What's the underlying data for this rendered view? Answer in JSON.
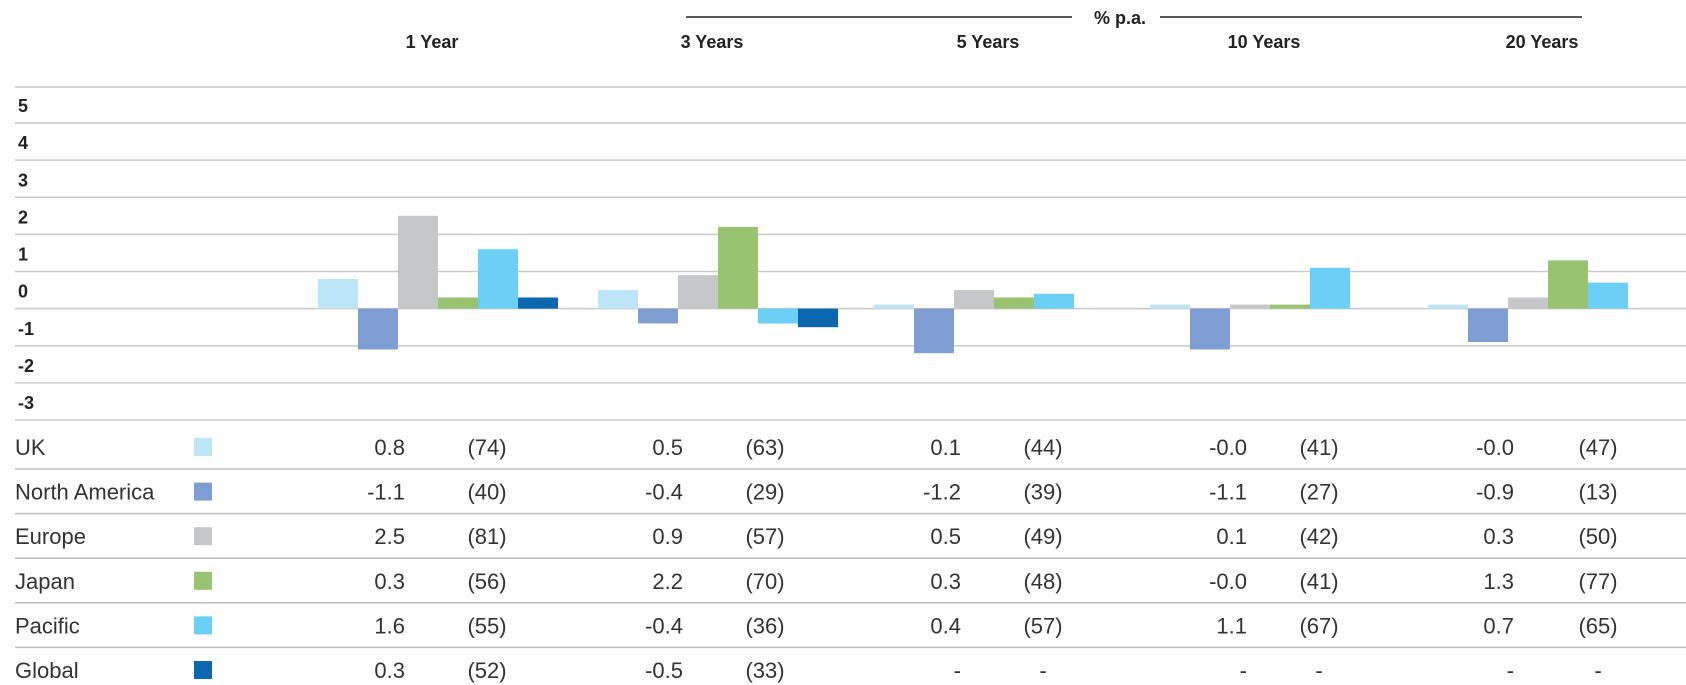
{
  "header": {
    "group_label": "% p.a.",
    "periods": [
      "1 Year",
      "3 Years",
      "5 Years",
      "10 Years",
      "20 Years"
    ]
  },
  "chart_data": {
    "type": "bar",
    "categories": [
      "1 Year",
      "3 Years",
      "5 Years",
      "10 Years",
      "20 Years"
    ],
    "ylim": [
      -3,
      5
    ],
    "yticks": [
      "5",
      "4",
      "3",
      "2",
      "1",
      "0",
      "-1",
      "-2",
      "-3"
    ],
    "grid": true,
    "legend": "table-below",
    "series": [
      {
        "name": "UK",
        "color": "#bce6f8",
        "values": [
          0.8,
          0.5,
          0.1,
          -0.0,
          -0.0
        ],
        "value_labels": [
          "0.8",
          "0.5",
          "0.1",
          "-0.0",
          "-0.0"
        ],
        "ranks": [
          "(74)",
          "(63)",
          "(44)",
          "(41)",
          "(47)"
        ]
      },
      {
        "name": "North America",
        "color": "#7f9fd4",
        "values": [
          -1.1,
          -0.4,
          -1.2,
          -1.1,
          -0.9
        ],
        "value_labels": [
          "-1.1",
          "-0.4",
          "-1.2",
          "-1.1",
          "-0.9"
        ],
        "ranks": [
          "(40)",
          "(29)",
          "(39)",
          "(27)",
          "(13)"
        ]
      },
      {
        "name": "Europe",
        "color": "#c6c7c9",
        "values": [
          2.5,
          0.9,
          0.5,
          0.1,
          0.3
        ],
        "value_labels": [
          "2.5",
          "0.9",
          "0.5",
          "0.1",
          "0.3"
        ],
        "ranks": [
          "(81)",
          "(57)",
          "(49)",
          "(42)",
          "(50)"
        ]
      },
      {
        "name": "Japan",
        "color": "#98c472",
        "values": [
          0.3,
          2.2,
          0.3,
          -0.0,
          1.3
        ],
        "value_labels": [
          "0.3",
          "2.2",
          "0.3",
          "-0.0",
          "1.3"
        ],
        "ranks": [
          "(56)",
          "(70)",
          "(48)",
          "(41)",
          "(77)"
        ]
      },
      {
        "name": "Pacific",
        "color": "#6ccff5",
        "values": [
          1.6,
          -0.4,
          0.4,
          1.1,
          0.7
        ],
        "value_labels": [
          "1.6",
          "-0.4",
          "0.4",
          "1.1",
          "0.7"
        ],
        "ranks": [
          "(55)",
          "(36)",
          "(57)",
          "(67)",
          "(65)"
        ]
      },
      {
        "name": "Global",
        "color": "#0a67b0",
        "values": [
          0.3,
          -0.5,
          null,
          null,
          null
        ],
        "value_labels": [
          "0.3",
          "-0.5",
          "-",
          "-",
          "-"
        ],
        "ranks": [
          "(52)",
          "(33)",
          "-",
          "-",
          "-"
        ]
      }
    ]
  }
}
